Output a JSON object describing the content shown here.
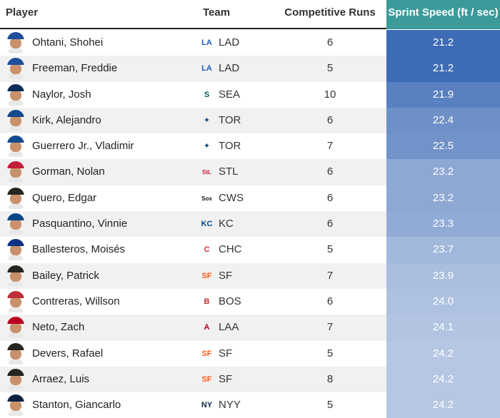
{
  "header": {
    "player": "Player",
    "team": "Team",
    "runs": "Competitive Runs",
    "speed": "Sprint Speed (ft / sec)"
  },
  "colors": {
    "header_speed_bg": "#3c9a9a",
    "speed_fast": "#3d6bb5",
    "speed_slow": "#b6c7e4"
  },
  "rows": [
    {
      "name": "Ohtani, Shohei",
      "team": "LAD",
      "logo": "dodgers-logo",
      "runs": "6",
      "speed": "21.2",
      "cap": "#1e4d9b"
    },
    {
      "name": "Freeman, Freddie",
      "team": "LAD",
      "logo": "dodgers-logo",
      "runs": "5",
      "speed": "21.2",
      "cap": "#1e4d9b"
    },
    {
      "name": "Naylor, Josh",
      "team": "SEA",
      "logo": "mariners-logo",
      "runs": "10",
      "speed": "21.9",
      "cap": "#0c2c56"
    },
    {
      "name": "Kirk, Alejandro",
      "team": "TOR",
      "logo": "bluejays-logo",
      "runs": "6",
      "speed": "22.4",
      "cap": "#134a8e"
    },
    {
      "name": "Guerrero Jr., Vladimir",
      "team": "TOR",
      "logo": "bluejays-logo",
      "runs": "7",
      "speed": "22.5",
      "cap": "#134a8e"
    },
    {
      "name": "Gorman, Nolan",
      "team": "STL",
      "logo": "cardinals-logo",
      "runs": "6",
      "speed": "23.2",
      "cap": "#c41e3a"
    },
    {
      "name": "Quero, Edgar",
      "team": "CWS",
      "logo": "whitesox-logo",
      "runs": "6",
      "speed": "23.2",
      "cap": "#27251f"
    },
    {
      "name": "Pasquantino, Vinnie",
      "team": "KC",
      "logo": "royals-logo",
      "runs": "6",
      "speed": "23.3",
      "cap": "#004687"
    },
    {
      "name": "Ballesteros, Moisés",
      "team": "CHC",
      "logo": "cubs-logo",
      "runs": "5",
      "speed": "23.7",
      "cap": "#0e3386"
    },
    {
      "name": "Bailey, Patrick",
      "team": "SF",
      "logo": "giants-logo",
      "runs": "7",
      "speed": "23.9",
      "cap": "#27251f"
    },
    {
      "name": "Contreras, Willson",
      "team": "BOS",
      "logo": "redsox-logo",
      "runs": "6",
      "speed": "24.0",
      "cap": "#bd3039"
    },
    {
      "name": "Neto, Zach",
      "team": "LAA",
      "logo": "angels-logo",
      "runs": "7",
      "speed": "24.1",
      "cap": "#ba0021"
    },
    {
      "name": "Devers, Rafael",
      "team": "SF",
      "logo": "giants-logo",
      "runs": "5",
      "speed": "24.2",
      "cap": "#27251f"
    },
    {
      "name": "Arraez, Luis",
      "team": "SF",
      "logo": "giants-logo",
      "runs": "8",
      "speed": "24.2",
      "cap": "#27251f"
    },
    {
      "name": "Stanton, Giancarlo",
      "team": "NYY",
      "logo": "yankees-logo",
      "runs": "5",
      "speed": "24.2",
      "cap": "#0c2340"
    }
  ]
}
